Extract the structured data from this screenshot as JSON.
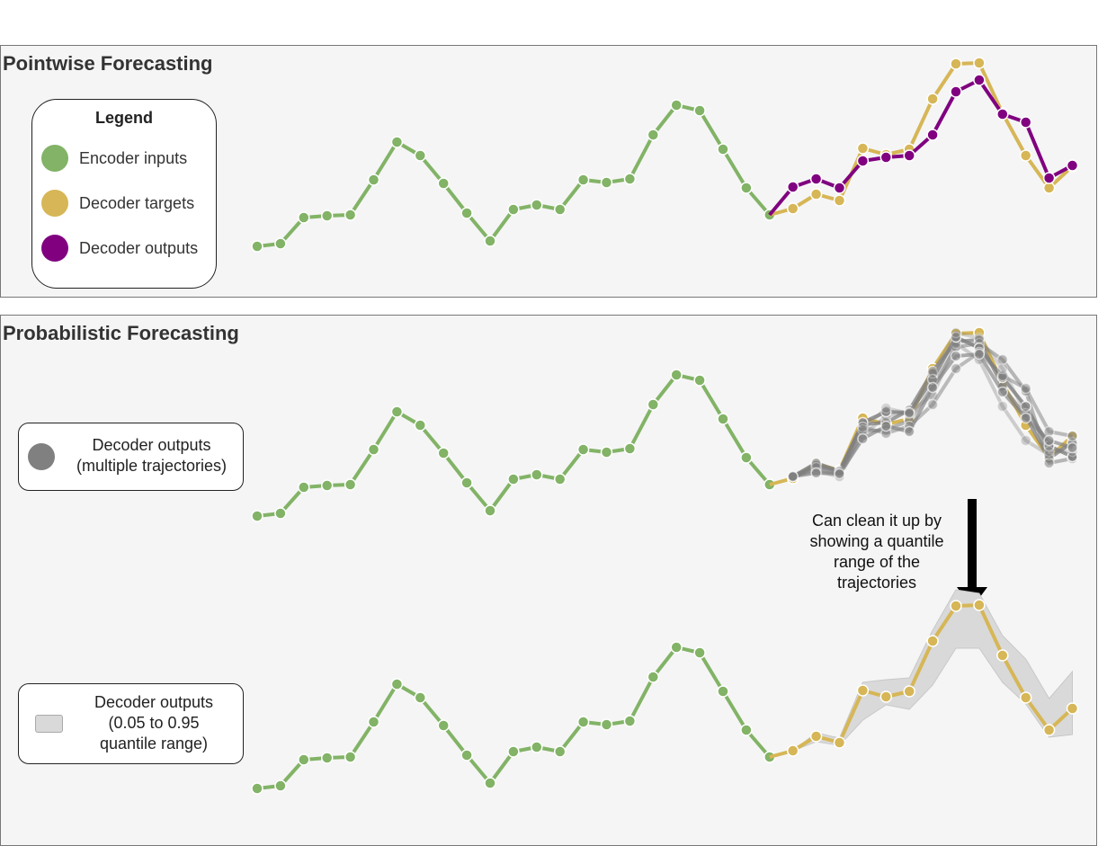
{
  "top_panel": {
    "title": "Pointwise Forecasting",
    "legend": {
      "title": "Legend",
      "items": [
        {
          "label": "Encoder inputs",
          "color": "#82b366"
        },
        {
          "label": "Decoder targets",
          "color": "#d6b656"
        },
        {
          "label": "Decoder outputs",
          "color": "#800080"
        }
      ]
    }
  },
  "bottom_panel": {
    "title": "Probabilistic Forecasting",
    "trajectories_legend": {
      "line1": "Decoder outputs",
      "line2": "(multiple trajectories)",
      "color": "#808080"
    },
    "quantile_legend": {
      "line1": "Decoder outputs",
      "line2": "(0.05 to 0.95",
      "line3": "quantile range)",
      "color": "#d9d9d9"
    },
    "note": {
      "line1": "Can clean it up by",
      "line2": "showing a quantile",
      "line3": "range of the",
      "line4": "trajectories"
    }
  },
  "chart_data": {
    "type": "line",
    "encoder_inputs": [
      56,
      59,
      88,
      90,
      91,
      130,
      172,
      157,
      126,
      93,
      62,
      97,
      102,
      97,
      130,
      127,
      131,
      180,
      213,
      207,
      164,
      121,
      91
    ],
    "decoder_targets": [
      98,
      114,
      107,
      165,
      158,
      164,
      220,
      259,
      260,
      204,
      157,
      121,
      145
    ],
    "decoder_outputs_pointwise": [
      122,
      131,
      121,
      151,
      155,
      157,
      180,
      228,
      241,
      203,
      194,
      132,
      146
    ],
    "trajectories": [
      [
        100,
        112,
        106,
        158,
        160,
        174,
        217,
        250,
        252,
        200,
        167,
        120,
        138
      ],
      [
        100,
        108,
        102,
        150,
        152,
        162,
        200,
        244,
        248,
        230,
        195,
        115,
        120
      ],
      [
        100,
        106,
        100,
        146,
        167,
        172,
        190,
        248,
        230,
        178,
        140,
        124,
        136
      ],
      [
        100,
        115,
        106,
        160,
        172,
        171,
        208,
        255,
        243,
        210,
        178,
        134,
        122
      ],
      [
        100,
        110,
        104,
        155,
        148,
        156,
        180,
        220,
        238,
        212,
        198,
        150,
        145
      ],
      [
        100,
        113,
        105,
        152,
        176,
        170,
        215,
        260,
        254,
        220,
        170,
        128,
        128
      ],
      [
        100,
        104,
        103,
        142,
        156,
        150,
        199,
        234,
        236,
        194,
        165,
        140,
        132
      ]
    ],
    "quantile_low": [
      98,
      108,
      104,
      132,
      149,
      144,
      171,
      212,
      212,
      174,
      150,
      113,
      116
    ],
    "quantile_high": [
      98,
      118,
      112,
      174,
      177,
      179,
      232,
      277,
      273,
      226,
      200,
      156,
      186
    ]
  }
}
